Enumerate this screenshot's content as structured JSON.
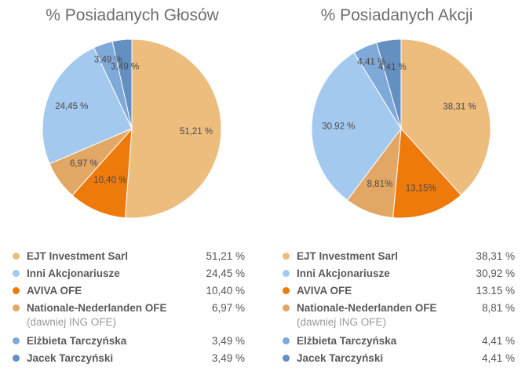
{
  "chart_data": [
    {
      "type": "pie",
      "title": "% Posiadanych Głosów",
      "slices": [
        {
          "label": "EJT Investment Sarl",
          "value": 51.21,
          "display": "51,21 %",
          "pie_label": "51,21 %",
          "color": "#EDBD7E"
        },
        {
          "label": "AVIVA OFE",
          "value": 10.4,
          "display": "10,40 %",
          "pie_label": "10,40 %",
          "color": "#EE7A0C"
        },
        {
          "label": "Nationale-Nederlanden OFE",
          "sublabel": "(dawniej ING OFE)",
          "value": 6.97,
          "display": "6,97 %",
          "pie_label": "6,97 %",
          "color": "#E3A765"
        },
        {
          "label": "Inni Akcjonariusze",
          "value": 24.45,
          "display": "24,45 %",
          "pie_label": "24,45 %",
          "color": "#A4C9EF"
        },
        {
          "label": "Elżbieta Tarczyńska",
          "value": 3.49,
          "display": "3,49 %",
          "pie_label": "3,49 %",
          "color": "#7FA9D8"
        },
        {
          "label": "Jacek Tarczyński",
          "value": 3.49,
          "display": "3,49 %",
          "pie_label": "3,49 %",
          "color": "#648FC1"
        }
      ]
    },
    {
      "type": "pie",
      "title": "% Posiadanych Akcji",
      "slices": [
        {
          "label": "EJT Investment Sarl",
          "value": 38.31,
          "display": "38,31 %",
          "pie_label": "38,31 %",
          "color": "#EDBD7E"
        },
        {
          "label": "AVIVA OFE",
          "value": 13.15,
          "display": "13.15 %",
          "pie_label": "13,15%",
          "color": "#EE7A0C"
        },
        {
          "label": "Nationale-Nederlanden OFE",
          "sublabel": "(dawniej ING OFE)",
          "value": 8.81,
          "display": "8,81 %",
          "pie_label": "8,81%",
          "color": "#E3A765"
        },
        {
          "label": "Inni Akcjonariusze",
          "value": 30.92,
          "display": "30,92 %",
          "pie_label": "30.92 %",
          "color": "#A4C9EF"
        },
        {
          "label": "Elżbieta Tarczyńska",
          "value": 4.41,
          "display": "4,41 %",
          "pie_label": "4,41 %",
          "color": "#7FA9D8"
        },
        {
          "label": "Jacek Tarczyński",
          "value": 4.41,
          "display": "4,41 %",
          "pie_label": "4,41 %",
          "color": "#648FC1"
        }
      ]
    }
  ],
  "legend_order": [
    "EJT Investment Sarl",
    "Inni Akcjonariusze",
    "AVIVA OFE",
    "Nationale-Nederlanden OFE",
    "Elżbieta Tarczyńska",
    "Jacek Tarczyński"
  ]
}
